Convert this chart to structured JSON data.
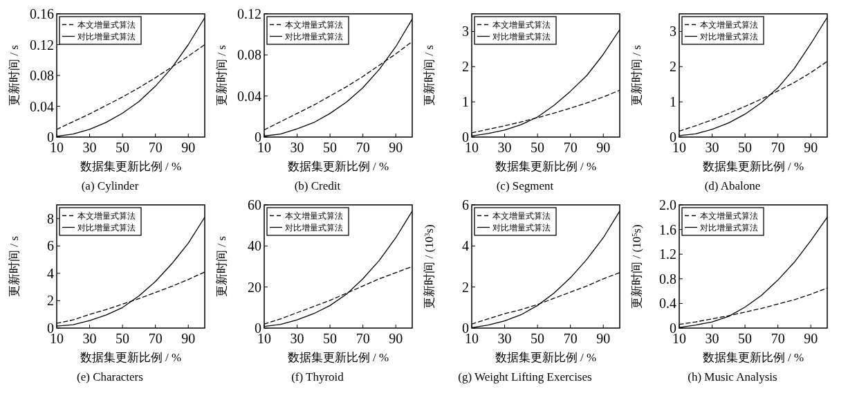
{
  "chart_data": [
    {
      "type": "line",
      "title": "(a)  Cylinder",
      "xlabel": "数据集更新比例 / %",
      "ylabel": "更新时间 / s",
      "x": [
        10,
        20,
        30,
        40,
        50,
        60,
        70,
        80,
        90,
        100
      ],
      "xlim": [
        10,
        100
      ],
      "xticks": [
        10,
        30,
        50,
        70,
        90
      ],
      "ylim": [
        0,
        0.16
      ],
      "yticks": [
        0,
        0.04,
        0.08,
        0.12,
        0.16
      ],
      "legend": "top left",
      "grid": false,
      "series": [
        {
          "name": "本文增量式算法",
          "color": "#000000",
          "line_style": "dashed",
          "values": [
            0.01,
            0.02,
            0.03,
            0.041,
            0.052,
            0.064,
            0.077,
            0.091,
            0.105,
            0.12
          ]
        },
        {
          "name": "对比增量式算法",
          "color": "#000000",
          "line_style": "solid",
          "values": [
            0.001,
            0.004,
            0.01,
            0.019,
            0.031,
            0.046,
            0.066,
            0.09,
            0.12,
            0.155
          ]
        }
      ]
    },
    {
      "type": "line",
      "title": "(b)  Credit",
      "xlabel": "数据集更新比例 / %",
      "ylabel": "更新时间 / s",
      "x": [
        10,
        20,
        30,
        40,
        50,
        60,
        70,
        80,
        90,
        100
      ],
      "xlim": [
        10,
        100
      ],
      "xticks": [
        10,
        30,
        50,
        70,
        90
      ],
      "ylim": [
        0,
        0.12
      ],
      "yticks": [
        0,
        0.04,
        0.08,
        0.12
      ],
      "legend": "top left",
      "grid": false,
      "series": [
        {
          "name": "本文增量式算法",
          "color": "#000000",
          "line_style": "dashed",
          "values": [
            0.007,
            0.015,
            0.023,
            0.031,
            0.04,
            0.049,
            0.059,
            0.07,
            0.081,
            0.093
          ]
        },
        {
          "name": "对比增量式算法",
          "color": "#000000",
          "line_style": "solid",
          "values": [
            0.001,
            0.003,
            0.008,
            0.014,
            0.023,
            0.034,
            0.048,
            0.066,
            0.088,
            0.115
          ]
        }
      ]
    },
    {
      "type": "line",
      "title": "(c)  Segment",
      "xlabel": "数据集更新比例 / %",
      "ylabel": "更新时间 / s",
      "x": [
        10,
        20,
        30,
        40,
        50,
        60,
        70,
        80,
        90,
        100
      ],
      "xlim": [
        10,
        100
      ],
      "xticks": [
        10,
        30,
        50,
        70,
        90
      ],
      "ylim": [
        0,
        3.5
      ],
      "yticks": [
        0,
        1,
        2,
        3
      ],
      "legend": "top left",
      "grid": false,
      "series": [
        {
          "name": "本文增量式算法",
          "color": "#000000",
          "line_style": "dashed",
          "values": [
            0.12,
            0.22,
            0.32,
            0.43,
            0.55,
            0.68,
            0.82,
            0.97,
            1.14,
            1.33
          ]
        },
        {
          "name": "对比增量式算法",
          "color": "#000000",
          "line_style": "solid",
          "values": [
            0.03,
            0.1,
            0.2,
            0.35,
            0.57,
            0.9,
            1.3,
            1.75,
            2.35,
            3.05
          ]
        }
      ]
    },
    {
      "type": "line",
      "title": "(d)  Abalone",
      "xlabel": "数据集更新比例 / %",
      "ylabel": "更新时间 / s",
      "x": [
        10,
        20,
        30,
        40,
        50,
        60,
        70,
        80,
        90,
        100
      ],
      "xlim": [
        10,
        100
      ],
      "xticks": [
        10,
        30,
        50,
        70,
        90
      ],
      "ylim": [
        0,
        3.5
      ],
      "yticks": [
        0,
        1,
        2,
        3
      ],
      "legend": "top left",
      "grid": false,
      "series": [
        {
          "name": "本文增量式算法",
          "color": "#000000",
          "line_style": "dashed",
          "values": [
            0.17,
            0.32,
            0.49,
            0.67,
            0.87,
            1.08,
            1.31,
            1.55,
            1.83,
            2.15
          ]
        },
        {
          "name": "对比增量式算法",
          "color": "#000000",
          "line_style": "solid",
          "values": [
            0.04,
            0.09,
            0.22,
            0.4,
            0.65,
            0.98,
            1.4,
            1.95,
            2.65,
            3.4
          ]
        }
      ]
    },
    {
      "type": "line",
      "title": "(e)  Characters",
      "xlabel": "数据集更新比例 / %",
      "ylabel": "更新时间 / s",
      "x": [
        10,
        20,
        30,
        40,
        50,
        60,
        70,
        80,
        90,
        100
      ],
      "xlim": [
        10,
        100
      ],
      "xticks": [
        10,
        30,
        50,
        70,
        90
      ],
      "ylim": [
        0,
        9
      ],
      "yticks": [
        0,
        2,
        4,
        6,
        8
      ],
      "legend": "top left",
      "grid": false,
      "series": [
        {
          "name": "本文增量式算法",
          "color": "#000000",
          "line_style": "dashed",
          "values": [
            0.35,
            0.6,
            1.0,
            1.35,
            1.75,
            2.15,
            2.6,
            3.05,
            3.55,
            4.1
          ]
        },
        {
          "name": "对比增量式算法",
          "color": "#000000",
          "line_style": "solid",
          "values": [
            0.15,
            0.25,
            0.55,
            0.95,
            1.5,
            2.35,
            3.4,
            4.7,
            6.2,
            8.1
          ]
        }
      ]
    },
    {
      "type": "line",
      "title": "(f)  Thyroid",
      "xlabel": "数据集更新比例 / %",
      "ylabel": "更新时间 / s",
      "x": [
        10,
        20,
        30,
        40,
        50,
        60,
        70,
        80,
        90,
        100
      ],
      "xlim": [
        10,
        100
      ],
      "xticks": [
        10,
        30,
        50,
        70,
        90
      ],
      "ylim": [
        0,
        60
      ],
      "yticks": [
        0,
        20,
        40,
        60
      ],
      "legend": "top left",
      "grid": false,
      "series": [
        {
          "name": "本文增量式算法",
          "color": "#000000",
          "line_style": "dashed",
          "values": [
            2,
            4.5,
            7.5,
            10.5,
            13.5,
            17,
            20.5,
            24,
            27,
            30
          ]
        },
        {
          "name": "对比增量式算法",
          "color": "#000000",
          "line_style": "solid",
          "values": [
            0.8,
            1.8,
            4,
            7,
            11,
            16.5,
            24,
            33,
            44,
            57
          ]
        }
      ]
    },
    {
      "type": "line",
      "title": "(g)  Weight Lifting Exercises",
      "xlabel": "数据集更新比例 / %",
      "ylabel": "更新时间 / (10$^{3}$s)",
      "x": [
        10,
        20,
        30,
        40,
        50,
        60,
        70,
        80,
        90,
        100
      ],
      "xlim": [
        10,
        100
      ],
      "xticks": [
        10,
        30,
        50,
        70,
        90
      ],
      "ylim": [
        0,
        6
      ],
      "yticks": [
        0,
        2,
        4,
        6
      ],
      "legend": "top left",
      "grid": false,
      "series": [
        {
          "name": "本文增量式算法",
          "color": "#000000",
          "line_style": "dashed",
          "values": [
            0.2,
            0.45,
            0.7,
            0.9,
            1.15,
            1.45,
            1.75,
            2.05,
            2.4,
            2.7
          ]
        },
        {
          "name": "对比增量式算法",
          "color": "#000000",
          "line_style": "solid",
          "values": [
            0.02,
            0.15,
            0.35,
            0.65,
            1.1,
            1.7,
            2.45,
            3.35,
            4.4,
            5.7
          ]
        }
      ]
    },
    {
      "type": "line",
      "title": "(h)  Music Analysis",
      "xlabel": "数据集更新比例 / %",
      "ylabel": "更新时间 / (10$^{5}$s)",
      "x": [
        10,
        20,
        30,
        40,
        50,
        60,
        70,
        80,
        90,
        100
      ],
      "xlim": [
        10,
        100
      ],
      "xticks": [
        10,
        30,
        50,
        70,
        90
      ],
      "ylim": [
        0,
        2.0
      ],
      "yticks": [
        0,
        {
          "value": 0.4,
          "label": "0.4"
        },
        {
          "value": 0.8,
          "label": "0.8"
        },
        {
          "value": 1.2,
          "label": "1.2"
        },
        {
          "value": 1.6,
          "label": "1.6"
        },
        {
          "value": 2.0,
          "label": "2.0"
        }
      ],
      "legend": "top left",
      "grid": false,
      "series": [
        {
          "name": "本文增量式算法",
          "color": "#000000",
          "line_style": "dashed",
          "values": [
            0.06,
            0.1,
            0.15,
            0.2,
            0.26,
            0.32,
            0.39,
            0.46,
            0.55,
            0.65
          ]
        },
        {
          "name": "对比增量式算法",
          "color": "#000000",
          "line_style": "solid",
          "values": [
            0.01,
            0.05,
            0.1,
            0.19,
            0.34,
            0.53,
            0.78,
            1.07,
            1.42,
            1.8
          ]
        }
      ]
    }
  ]
}
